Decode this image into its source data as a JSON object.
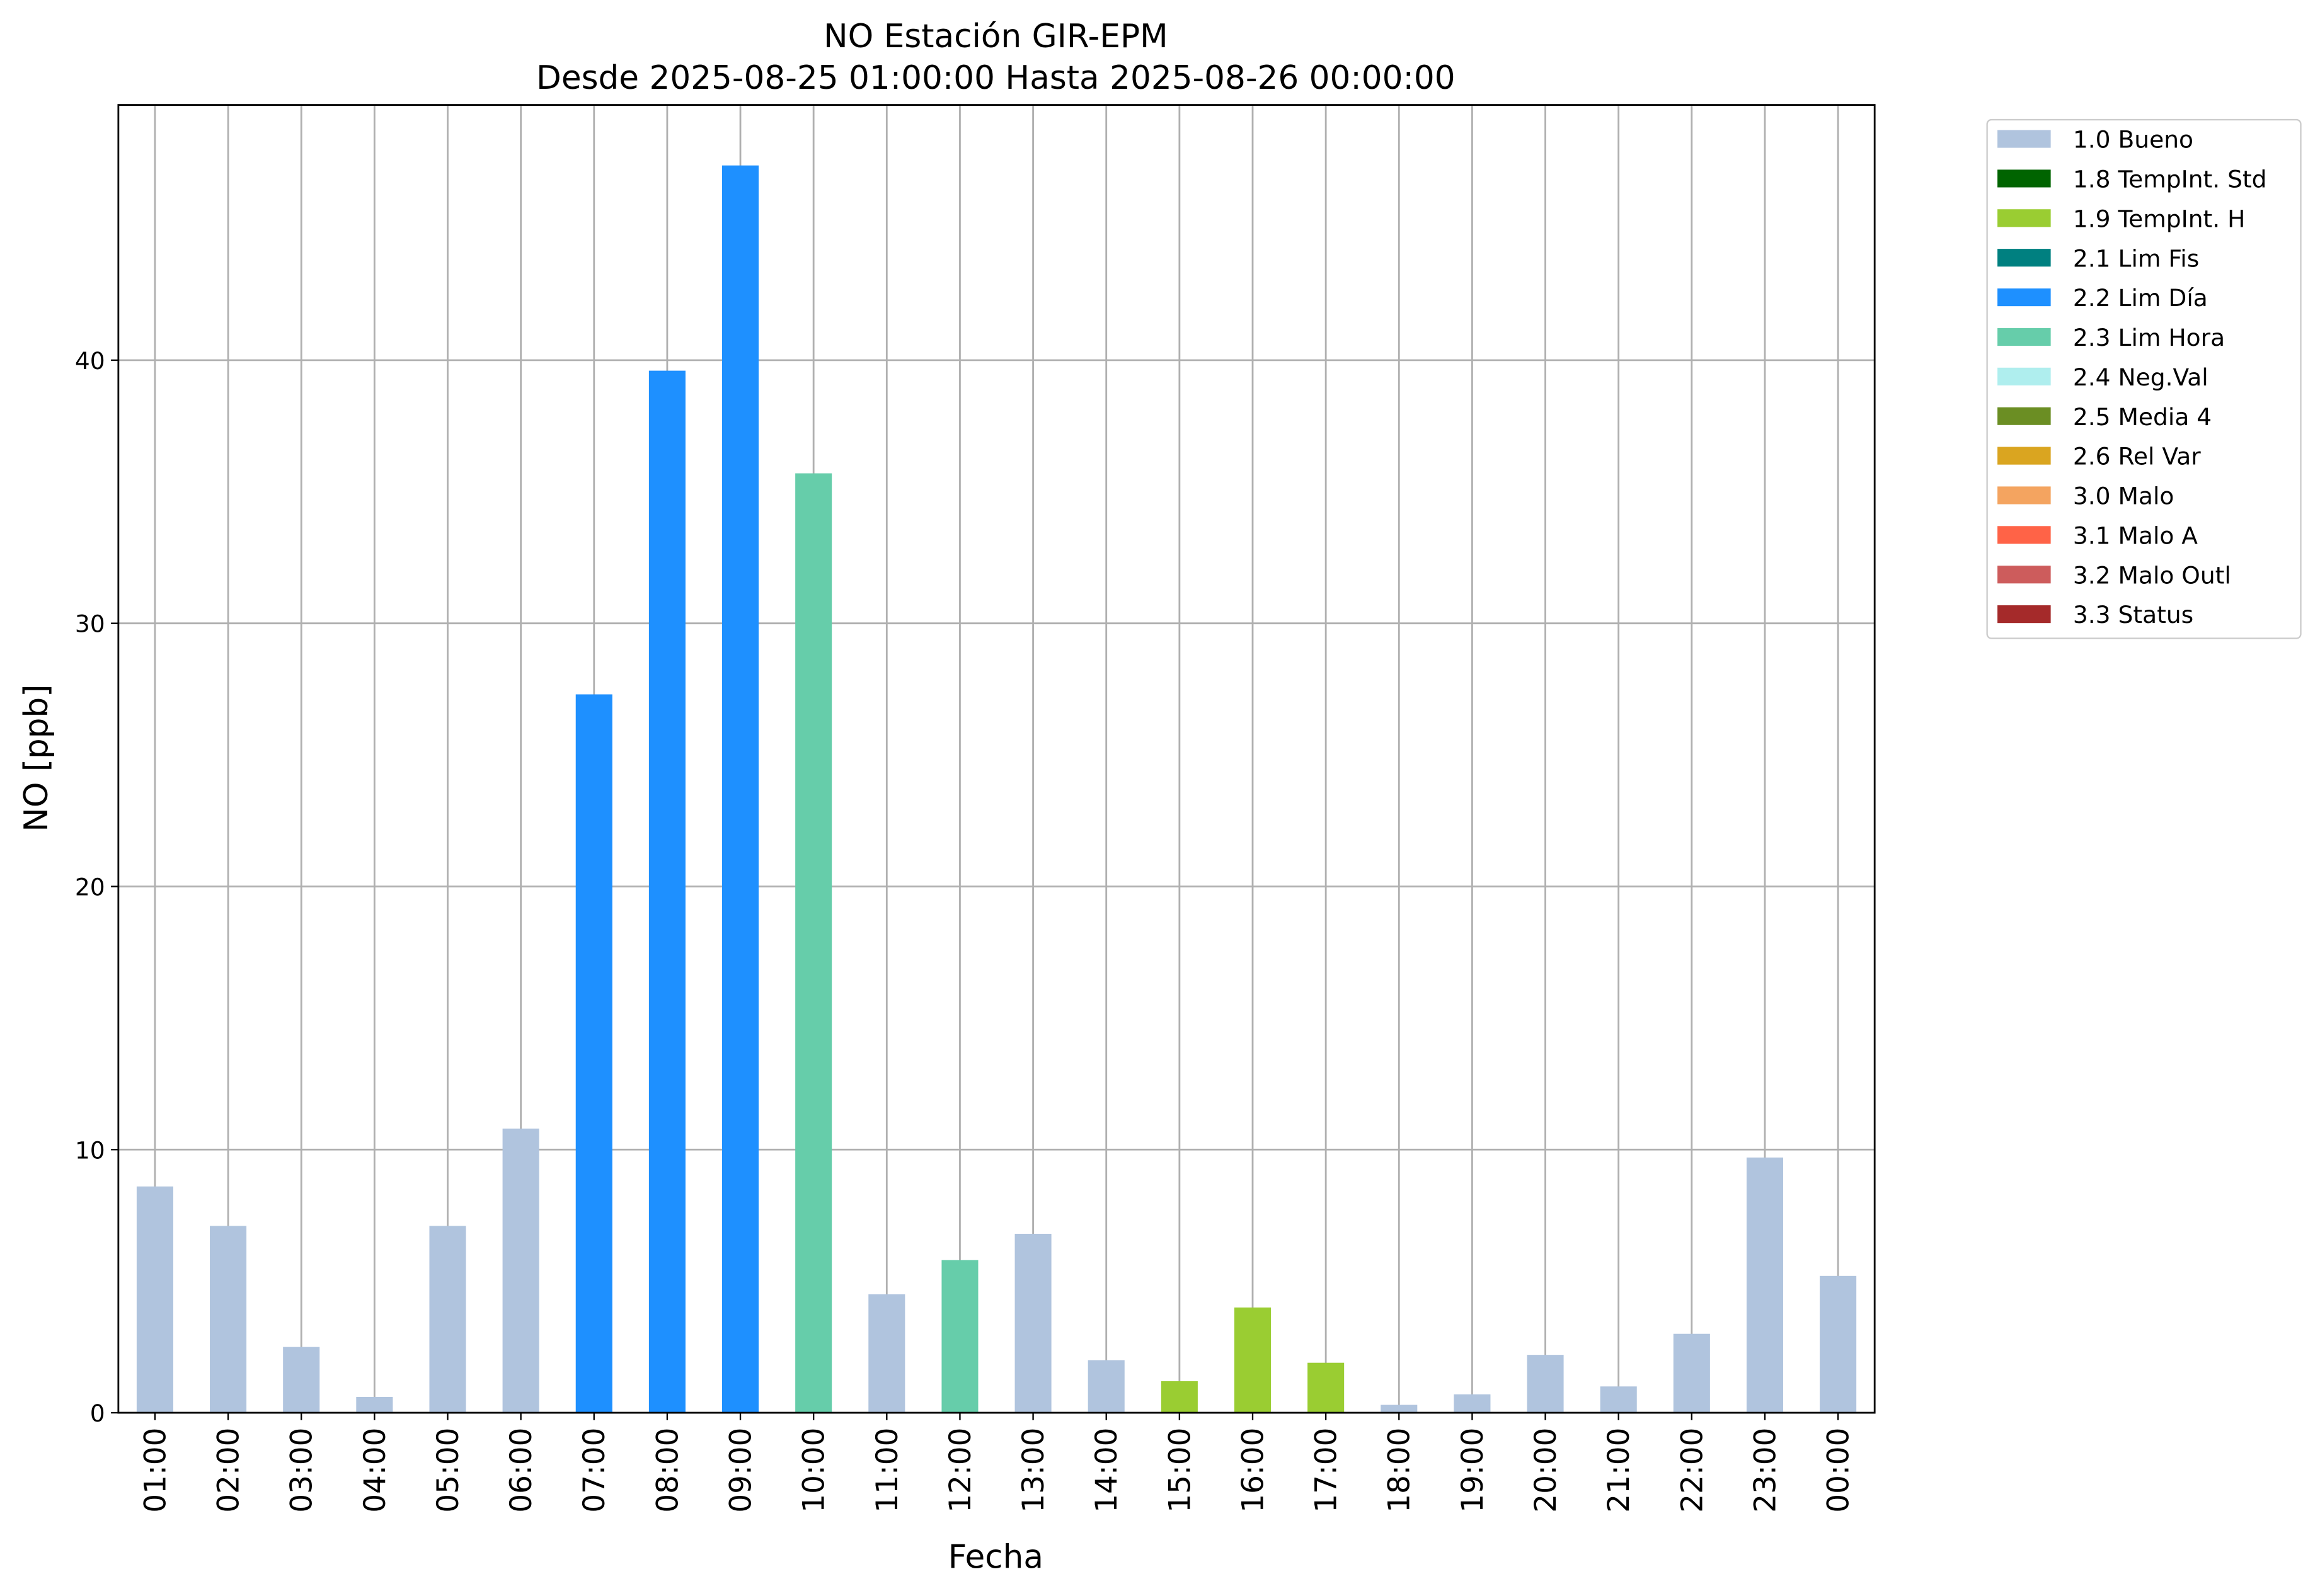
{
  "chart_data": {
    "type": "bar",
    "title": "NO Estación GIR-EPM",
    "subtitle": "Desde 2025-08-25 01:00:00 Hasta 2025-08-26 00:00:00",
    "xlabel": "Fecha",
    "ylabel": "NO [ppb]",
    "categories": [
      "01:00",
      "02:00",
      "03:00",
      "04:00",
      "05:00",
      "06:00",
      "07:00",
      "08:00",
      "09:00",
      "10:00",
      "11:00",
      "12:00",
      "13:00",
      "14:00",
      "15:00",
      "16:00",
      "17:00",
      "18:00",
      "19:00",
      "20:00",
      "21:00",
      "22:00",
      "23:00",
      "00:00"
    ],
    "values": [
      8.6,
      7.1,
      2.5,
      0.6,
      7.1,
      10.8,
      27.3,
      39.6,
      47.4,
      35.7,
      4.5,
      5.8,
      6.8,
      2.0,
      1.2,
      4.0,
      1.9,
      0.3,
      0.7,
      2.2,
      1.0,
      3.0,
      9.7,
      5.2
    ],
    "colors": [
      "#b0c4de",
      "#b0c4de",
      "#b0c4de",
      "#b0c4de",
      "#b0c4de",
      "#b0c4de",
      "#1e90ff",
      "#1e90ff",
      "#1e90ff",
      "#66cdaa",
      "#b0c4de",
      "#66cdaa",
      "#b0c4de",
      "#b0c4de",
      "#9acd32",
      "#9acd32",
      "#9acd32",
      "#b0c4de",
      "#b0c4de",
      "#b0c4de",
      "#b0c4de",
      "#b0c4de",
      "#b0c4de",
      "#b0c4de"
    ],
    "ylim": [
      0,
      49.7
    ],
    "yticks": [
      0,
      10,
      20,
      30,
      40
    ],
    "grid": true,
    "legend_position": "outside upper right",
    "legend": [
      {
        "name": "1.0 Bueno",
        "color": "#b0c4de"
      },
      {
        "name": "1.8 TempInt. Std",
        "color": "#006400"
      },
      {
        "name": "1.9 TempInt. H",
        "color": "#9acd32"
      },
      {
        "name": "2.1 Lim Fis",
        "color": "#008080"
      },
      {
        "name": "2.2 Lim Día",
        "color": "#1e90ff"
      },
      {
        "name": "2.3 Lim Hora",
        "color": "#66cdaa"
      },
      {
        "name": "2.4 Neg.Val",
        "color": "#afeeee"
      },
      {
        "name": "2.5 Media 4",
        "color": "#6b8e23"
      },
      {
        "name": "2.6 Rel Var",
        "color": "#daa520"
      },
      {
        "name": "3.0 Malo",
        "color": "#f4a460"
      },
      {
        "name": "3.1 Malo A",
        "color": "#ff6347"
      },
      {
        "name": "3.2 Malo Outl",
        "color": "#cd5c5c"
      },
      {
        "name": "3.3 Status",
        "color": "#a52a2a"
      }
    ]
  }
}
